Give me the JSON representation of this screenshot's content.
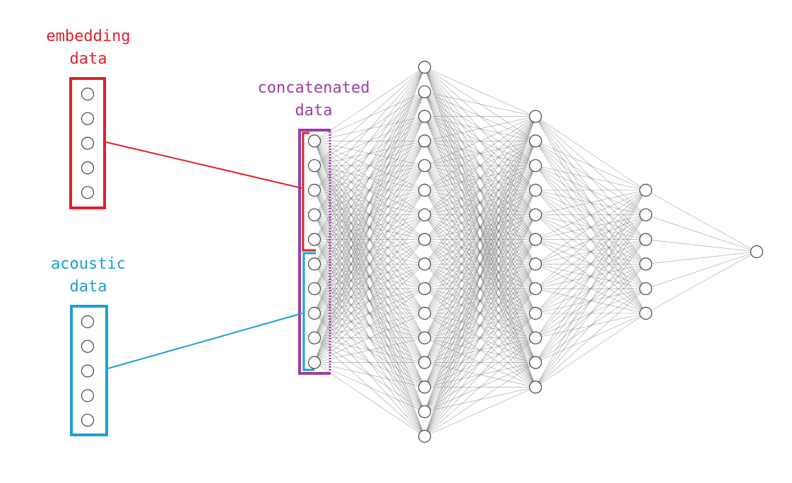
{
  "labels": {
    "embedding": [
      "embedding",
      "data"
    ],
    "acoustic": [
      "acoustic",
      "data"
    ],
    "concatenated": [
      "concatenated",
      "data"
    ]
  },
  "colors": {
    "embedding": "#e0202a",
    "acoustic": "#1aa0d8",
    "concatenated": "#9b3fa0",
    "node_stroke": "#444444",
    "edge": "#555555"
  },
  "network": {
    "layer_sizes": [
      10,
      16,
      12,
      6,
      1
    ],
    "embedding_inputs": 5,
    "acoustic_inputs": 5
  }
}
